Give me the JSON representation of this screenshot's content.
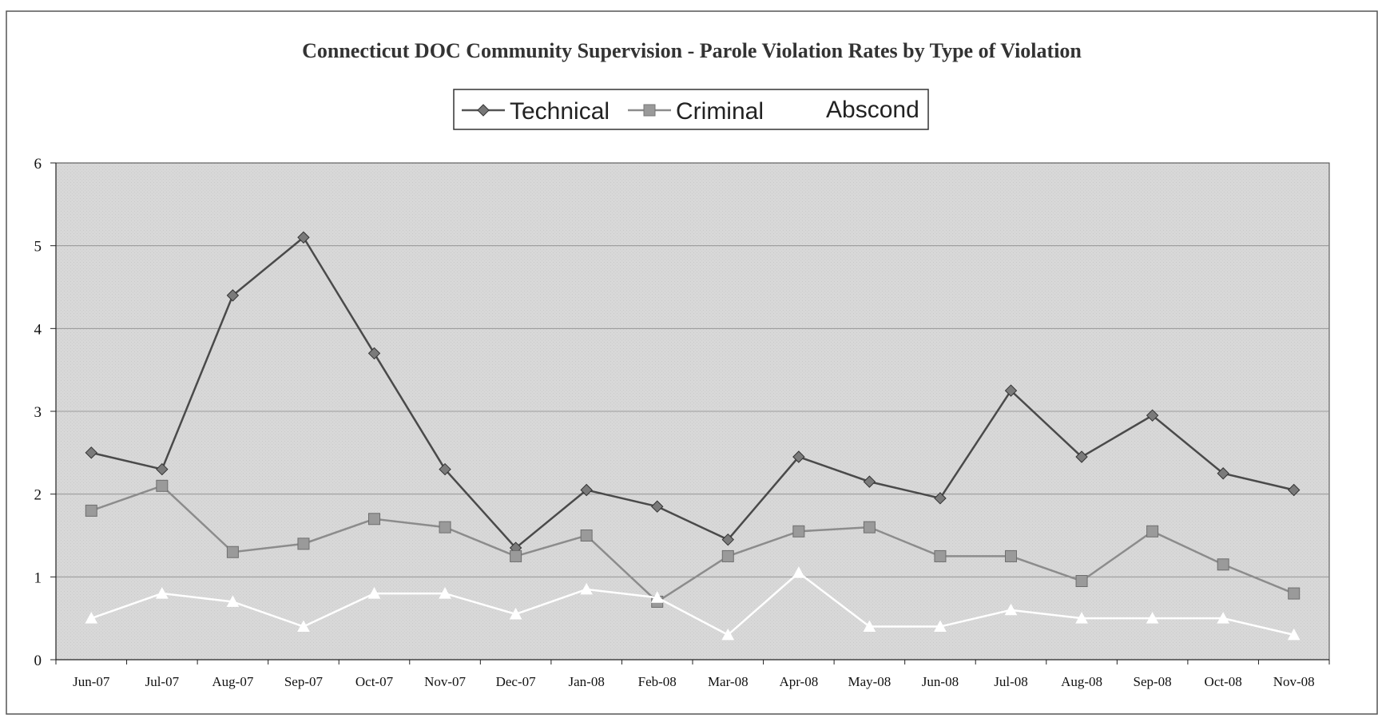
{
  "chart_data": {
    "type": "line",
    "title": "Connecticut DOC Community Supervision -  Parole Violation Rates by Type of Violation",
    "xlabel": "",
    "ylabel": "",
    "categories": [
      "Jun-07",
      "Jul-07",
      "Aug-07",
      "Sep-07",
      "Oct-07",
      "Nov-07",
      "Dec-07",
      "Jan-08",
      "Feb-08",
      "Mar-08",
      "Apr-08",
      "May-08",
      "Jun-08",
      "Jul-08",
      "Aug-08",
      "Sep-08",
      "Oct-08",
      "Nov-08"
    ],
    "ylim": [
      0,
      6
    ],
    "yticks": [
      "0",
      "1",
      "2",
      "3",
      "4",
      "5",
      "6"
    ],
    "grid": true,
    "legend_position": "top-center",
    "series": [
      {
        "name": "Technical",
        "marker": "diamond",
        "color": "#555555",
        "values": [
          2.5,
          2.3,
          4.4,
          5.1,
          3.7,
          2.3,
          1.35,
          2.05,
          1.85,
          1.45,
          2.45,
          2.15,
          1.95,
          3.25,
          2.45,
          2.95,
          2.25,
          2.05
        ]
      },
      {
        "name": "Criminal",
        "marker": "square",
        "color": "#8c8c8c",
        "values": [
          1.8,
          2.1,
          1.3,
          1.4,
          1.7,
          1.6,
          1.25,
          1.5,
          0.7,
          1.25,
          1.55,
          1.6,
          1.25,
          1.25,
          0.95,
          1.55,
          1.15,
          0.8
        ]
      },
      {
        "name": "Abscond",
        "marker": "triangle",
        "color": "#ffffff",
        "values": [
          0.5,
          0.8,
          0.7,
          0.4,
          0.8,
          0.8,
          0.55,
          0.85,
          0.75,
          0.3,
          1.05,
          0.4,
          0.4,
          0.6,
          0.5,
          0.5,
          0.5,
          0.3
        ]
      }
    ]
  }
}
